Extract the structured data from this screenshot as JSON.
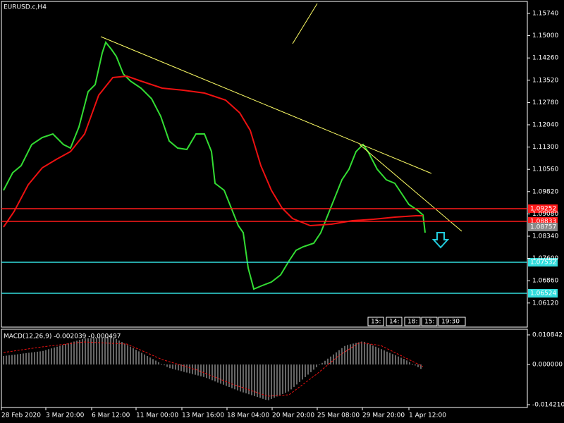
{
  "window": {
    "title": "EURUSD.c,H4"
  },
  "price_axis": {
    "ticks": [
      "1.15740",
      "1.15000",
      "1.14260",
      "1.13520",
      "1.12780",
      "1.12040",
      "1.11300",
      "1.10560",
      "1.09820",
      "1.09080",
      "1.08340",
      "1.07600",
      "1.06860",
      "1.06120"
    ]
  },
  "levels": [
    {
      "label": "1.09252",
      "kind": "red"
    },
    {
      "label": "1.08833",
      "kind": "red"
    },
    {
      "label": "1.08757",
      "kind": "gray"
    },
    {
      "label": "1.07532",
      "kind": "cyan"
    },
    {
      "label": "1.06524",
      "kind": "cyan"
    }
  ],
  "macd": {
    "label": "MACD(12,26,9) -0.002039 -0.000497",
    "ticks": [
      "0.010842",
      "0.000000",
      "-0.014210"
    ]
  },
  "time_axis": {
    "ticks": [
      "28 Feb 2020",
      "3 Mar 20:00",
      "6 Mar 12:00",
      "11 Mar 00:00",
      "13 Mar 16:00",
      "18 Mar 04:00",
      "20 Mar 20:00",
      "25 Mar 08:00",
      "29 Mar 20:00",
      "1 Apr 12:00"
    ]
  },
  "session_boxes": [
    "15:",
    "14:",
    "18:",
    "15:",
    "19:30"
  ]
}
